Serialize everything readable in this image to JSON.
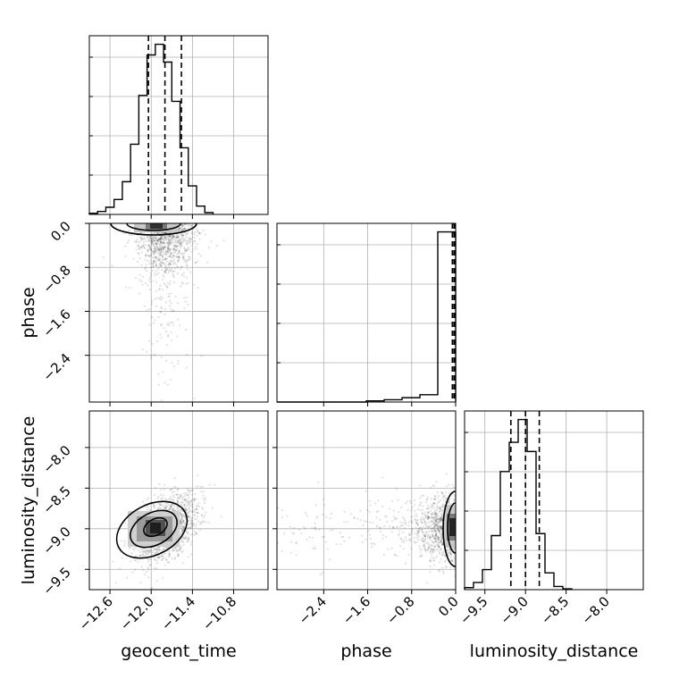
{
  "chart_data": {
    "type": "corner",
    "parameters": [
      "geocent_time",
      "phase",
      "luminosity_distance"
    ],
    "axes": {
      "geocent_time": {
        "label": "geocent_time",
        "range": [
          -12.9,
          -10.3
        ],
        "ticks": [
          -12.6,
          -12.0,
          -11.4,
          -10.8
        ],
        "tick_labels": [
          "−12.6",
          "−12.0",
          "−11.4",
          "−10.8"
        ],
        "quantiles": [
          -12.04,
          -11.8,
          -11.56
        ]
      },
      "phase": {
        "label": "phase",
        "range": [
          -3.25,
          0.0
        ],
        "ticks": [
          -2.4,
          -1.6,
          -0.8,
          0.0
        ],
        "tick_labels": [
          "−2.4",
          "−1.6",
          "−0.8",
          "0.0"
        ],
        "quantiles": [
          -0.06,
          -0.03,
          -0.01
        ]
      },
      "luminosity_distance": {
        "label": "luminosity_distance",
        "range": [
          -9.75,
          -7.55
        ],
        "ticks": [
          -9.5,
          -9.0,
          -8.5,
          -8.0
        ],
        "tick_labels": [
          "−9.5",
          "−9.0",
          "−8.5",
          "−8.0"
        ],
        "quantiles": [
          -9.18,
          -9.0,
          -8.83
        ]
      }
    },
    "histograms": {
      "geocent_time": {
        "bin_edges": [
          -12.9,
          -12.78,
          -12.66,
          -12.54,
          -12.42,
          -12.3,
          -12.18,
          -12.06,
          -11.94,
          -11.82,
          -11.7,
          -11.58,
          -11.46,
          -11.34,
          -11.22,
          -11.1
        ],
        "counts": [
          2,
          5,
          12,
          25,
          55,
          118,
          200,
          268,
          286,
          256,
          190,
          112,
          48,
          14,
          3
        ]
      },
      "phase": {
        "bin_edges": [
          -3.25,
          -2.925,
          -2.6,
          -2.275,
          -1.95,
          -1.625,
          -1.3,
          -0.975,
          -0.65,
          -0.325,
          0.0
        ],
        "counts": [
          0,
          0,
          0,
          0,
          0,
          4,
          8,
          15,
          25,
          585
        ]
      },
      "luminosity_distance": {
        "bin_edges": [
          -9.75,
          -9.64,
          -9.53,
          -9.42,
          -9.31,
          -9.2,
          -9.09,
          -8.98,
          -8.87,
          -8.76,
          -8.65,
          -8.54,
          -8.43
        ],
        "counts": [
          5,
          18,
          50,
          135,
          295,
          368,
          425,
          345,
          140,
          42,
          8,
          2
        ]
      }
    },
    "correlations": {
      "phase_vs_geocent_time": 0.25,
      "luminosity_distance_vs_geocent_time": 0.45,
      "luminosity_distance_vs_phase": 0.1
    },
    "grid": true
  }
}
